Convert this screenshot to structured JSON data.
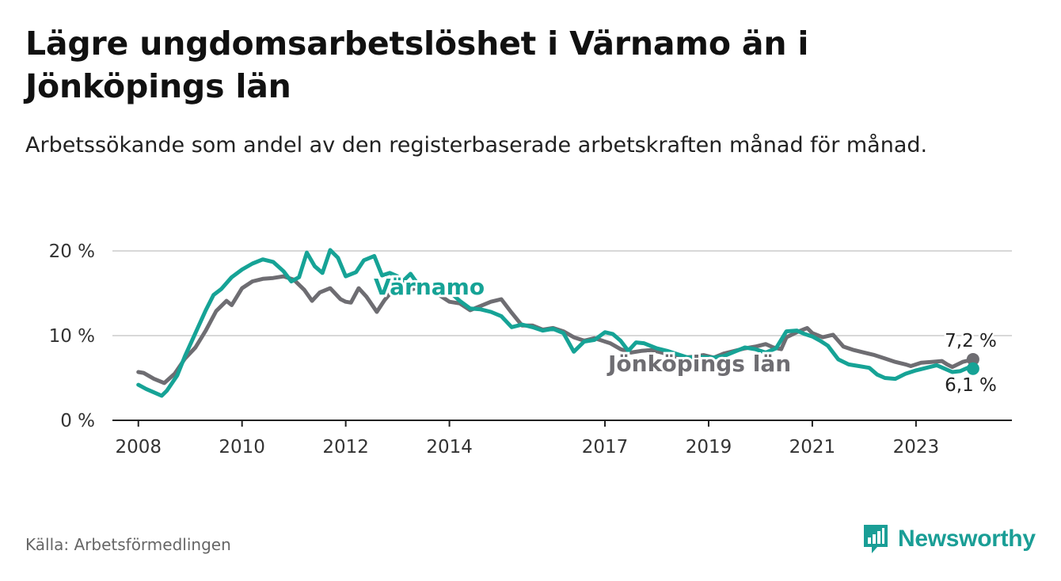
{
  "title": "Lägre ungdomsarbetslöshet i Värnamo än i Jönköpings län",
  "subtitle": "Arbetssökande som andel av den registerbaserade arbetskraften månad för månad.",
  "source": "Källa: Arbetsförmedlingen",
  "brand": "Newsworthy",
  "colors": {
    "varnamo": "#16a396",
    "jonkoping": "#6e6d72",
    "grid": "#d8d8d8",
    "axis": "#222222",
    "text": "#333333"
  },
  "chart_data": {
    "type": "line",
    "title": "Lägre ungdomsarbetslöshet i Värnamo än i Jönköpings län",
    "xlabel": "",
    "ylabel": "",
    "xlim": [
      2007.5,
      2024.85
    ],
    "ylim": [
      0,
      20
    ],
    "yticks": [
      0,
      10,
      20
    ],
    "ytick_labels": [
      "0 %",
      "10 %",
      "20 %"
    ],
    "xticks": [
      2008,
      2010,
      2012,
      2014,
      2017,
      2019,
      2021,
      2023
    ],
    "xtick_labels": [
      "2008",
      "2010",
      "2012",
      "2014",
      "2017",
      "2019",
      "2021",
      "2023"
    ],
    "grid": true,
    "series": [
      {
        "name": "Jönköpings län",
        "label": "Jönköpings län",
        "end_label": "7,2 %",
        "points": [
          [
            2008.0,
            5.7
          ],
          [
            2008.1,
            5.6
          ],
          [
            2008.3,
            4.9
          ],
          [
            2008.5,
            4.4
          ],
          [
            2008.7,
            5.5
          ],
          [
            2008.9,
            7.3
          ],
          [
            2009.1,
            8.6
          ],
          [
            2009.3,
            10.6
          ],
          [
            2009.5,
            12.9
          ],
          [
            2009.7,
            14.1
          ],
          [
            2009.8,
            13.6
          ],
          [
            2010.0,
            15.6
          ],
          [
            2010.2,
            16.4
          ],
          [
            2010.4,
            16.7
          ],
          [
            2010.6,
            16.8
          ],
          [
            2010.8,
            17.0
          ],
          [
            2011.0,
            16.6
          ],
          [
            2011.2,
            15.4
          ],
          [
            2011.35,
            14.1
          ],
          [
            2011.5,
            15.1
          ],
          [
            2011.7,
            15.6
          ],
          [
            2011.9,
            14.3
          ],
          [
            2012.0,
            14.0
          ],
          [
            2012.1,
            13.9
          ],
          [
            2012.25,
            15.6
          ],
          [
            2012.4,
            14.6
          ],
          [
            2012.5,
            13.7
          ],
          [
            2012.6,
            12.8
          ],
          [
            2012.75,
            14.2
          ],
          [
            2012.9,
            15.3
          ],
          [
            2013.1,
            15.4
          ],
          [
            2013.3,
            15.5
          ],
          [
            2013.4,
            15.7
          ],
          [
            2013.6,
            14.8
          ],
          [
            2013.75,
            15.3
          ],
          [
            2013.8,
            14.8
          ],
          [
            2014.0,
            14.0
          ],
          [
            2014.2,
            13.8
          ],
          [
            2014.4,
            13.0
          ],
          [
            2014.8,
            14.0
          ],
          [
            2015.0,
            14.3
          ],
          [
            2015.2,
            12.7
          ],
          [
            2015.4,
            11.2
          ],
          [
            2015.6,
            11.2
          ],
          [
            2015.8,
            10.7
          ],
          [
            2016.0,
            10.9
          ],
          [
            2016.2,
            10.5
          ],
          [
            2016.4,
            9.8
          ],
          [
            2016.6,
            9.4
          ],
          [
            2016.8,
            9.7
          ],
          [
            2017.0,
            9.3
          ],
          [
            2017.1,
            9.1
          ],
          [
            2017.3,
            8.4
          ],
          [
            2017.5,
            8.0
          ],
          [
            2017.7,
            8.2
          ],
          [
            2017.9,
            8.3
          ],
          [
            2018.1,
            8.0
          ],
          [
            2018.3,
            7.6
          ],
          [
            2018.5,
            7.4
          ],
          [
            2018.7,
            7.5
          ],
          [
            2018.9,
            7.7
          ],
          [
            2019.1,
            7.4
          ],
          [
            2019.3,
            7.9
          ],
          [
            2019.5,
            8.2
          ],
          [
            2019.7,
            8.5
          ],
          [
            2019.9,
            8.7
          ],
          [
            2020.1,
            9.0
          ],
          [
            2020.25,
            8.6
          ],
          [
            2020.4,
            8.4
          ],
          [
            2020.5,
            9.8
          ],
          [
            2020.7,
            10.4
          ],
          [
            2020.9,
            10.9
          ],
          [
            2021.0,
            10.3
          ],
          [
            2021.2,
            9.8
          ],
          [
            2021.4,
            10.1
          ],
          [
            2021.6,
            8.7
          ],
          [
            2021.8,
            8.3
          ],
          [
            2022.0,
            8.0
          ],
          [
            2022.2,
            7.7
          ],
          [
            2022.4,
            7.3
          ],
          [
            2022.6,
            6.9
          ],
          [
            2022.8,
            6.6
          ],
          [
            2022.9,
            6.4
          ],
          [
            2023.1,
            6.8
          ],
          [
            2023.3,
            6.9
          ],
          [
            2023.5,
            7.0
          ],
          [
            2023.6,
            6.6
          ],
          [
            2023.7,
            6.3
          ],
          [
            2023.9,
            6.9
          ],
          [
            2024.1,
            7.2
          ]
        ]
      },
      {
        "name": "Värnamo",
        "label": "Värnamo",
        "end_label": "6,1 %",
        "points": [
          [
            2008.0,
            4.2
          ],
          [
            2008.15,
            3.7
          ],
          [
            2008.3,
            3.3
          ],
          [
            2008.45,
            2.9
          ],
          [
            2008.55,
            3.5
          ],
          [
            2008.75,
            5.3
          ],
          [
            2008.9,
            7.6
          ],
          [
            2009.1,
            10.3
          ],
          [
            2009.3,
            13.0
          ],
          [
            2009.45,
            14.8
          ],
          [
            2009.6,
            15.5
          ],
          [
            2009.8,
            16.9
          ],
          [
            2010.0,
            17.8
          ],
          [
            2010.2,
            18.5
          ],
          [
            2010.4,
            19.0
          ],
          [
            2010.6,
            18.7
          ],
          [
            2010.8,
            17.6
          ],
          [
            2010.95,
            16.4
          ],
          [
            2011.1,
            16.9
          ],
          [
            2011.25,
            19.8
          ],
          [
            2011.4,
            18.2
          ],
          [
            2011.55,
            17.4
          ],
          [
            2011.7,
            20.1
          ],
          [
            2011.85,
            19.2
          ],
          [
            2012.0,
            17.0
          ],
          [
            2012.2,
            17.5
          ],
          [
            2012.35,
            18.9
          ],
          [
            2012.55,
            19.4
          ],
          [
            2012.7,
            17.1
          ],
          [
            2012.85,
            17.4
          ],
          [
            2013.0,
            17.0
          ],
          [
            2013.1,
            16.4
          ],
          [
            2013.25,
            17.3
          ],
          [
            2013.4,
            16.0
          ],
          [
            2013.6,
            15.4
          ],
          [
            2013.75,
            16.3
          ],
          [
            2014.0,
            15.2
          ],
          [
            2014.2,
            14.1
          ],
          [
            2014.4,
            13.2
          ],
          [
            2014.6,
            13.1
          ],
          [
            2014.8,
            12.8
          ],
          [
            2015.0,
            12.3
          ],
          [
            2015.2,
            11.0
          ],
          [
            2015.4,
            11.3
          ],
          [
            2015.6,
            11.0
          ],
          [
            2015.8,
            10.6
          ],
          [
            2016.0,
            10.8
          ],
          [
            2016.2,
            10.3
          ],
          [
            2016.4,
            8.1
          ],
          [
            2016.6,
            9.3
          ],
          [
            2016.8,
            9.5
          ],
          [
            2017.0,
            10.4
          ],
          [
            2017.15,
            10.2
          ],
          [
            2017.3,
            9.4
          ],
          [
            2017.45,
            8.2
          ],
          [
            2017.6,
            9.2
          ],
          [
            2017.75,
            9.1
          ],
          [
            2018.0,
            8.5
          ],
          [
            2018.2,
            8.2
          ],
          [
            2018.4,
            7.8
          ],
          [
            2018.6,
            7.4
          ],
          [
            2018.8,
            7.5
          ],
          [
            2019.1,
            7.4
          ],
          [
            2019.3,
            7.6
          ],
          [
            2019.5,
            8.1
          ],
          [
            2019.7,
            8.6
          ],
          [
            2019.9,
            8.4
          ],
          [
            2020.1,
            8.0
          ],
          [
            2020.3,
            8.5
          ],
          [
            2020.5,
            10.5
          ],
          [
            2020.7,
            10.6
          ],
          [
            2020.85,
            10.2
          ],
          [
            2021.0,
            9.9
          ],
          [
            2021.15,
            9.4
          ],
          [
            2021.3,
            8.8
          ],
          [
            2021.5,
            7.2
          ],
          [
            2021.7,
            6.6
          ],
          [
            2021.9,
            6.4
          ],
          [
            2022.1,
            6.2
          ],
          [
            2022.25,
            5.4
          ],
          [
            2022.4,
            5.0
          ],
          [
            2022.6,
            4.9
          ],
          [
            2022.8,
            5.5
          ],
          [
            2023.0,
            5.9
          ],
          [
            2023.2,
            6.2
          ],
          [
            2023.4,
            6.5
          ],
          [
            2023.55,
            6.1
          ],
          [
            2023.7,
            5.7
          ],
          [
            2023.85,
            5.8
          ],
          [
            2024.0,
            6.2
          ],
          [
            2024.1,
            6.1
          ]
        ]
      }
    ]
  }
}
